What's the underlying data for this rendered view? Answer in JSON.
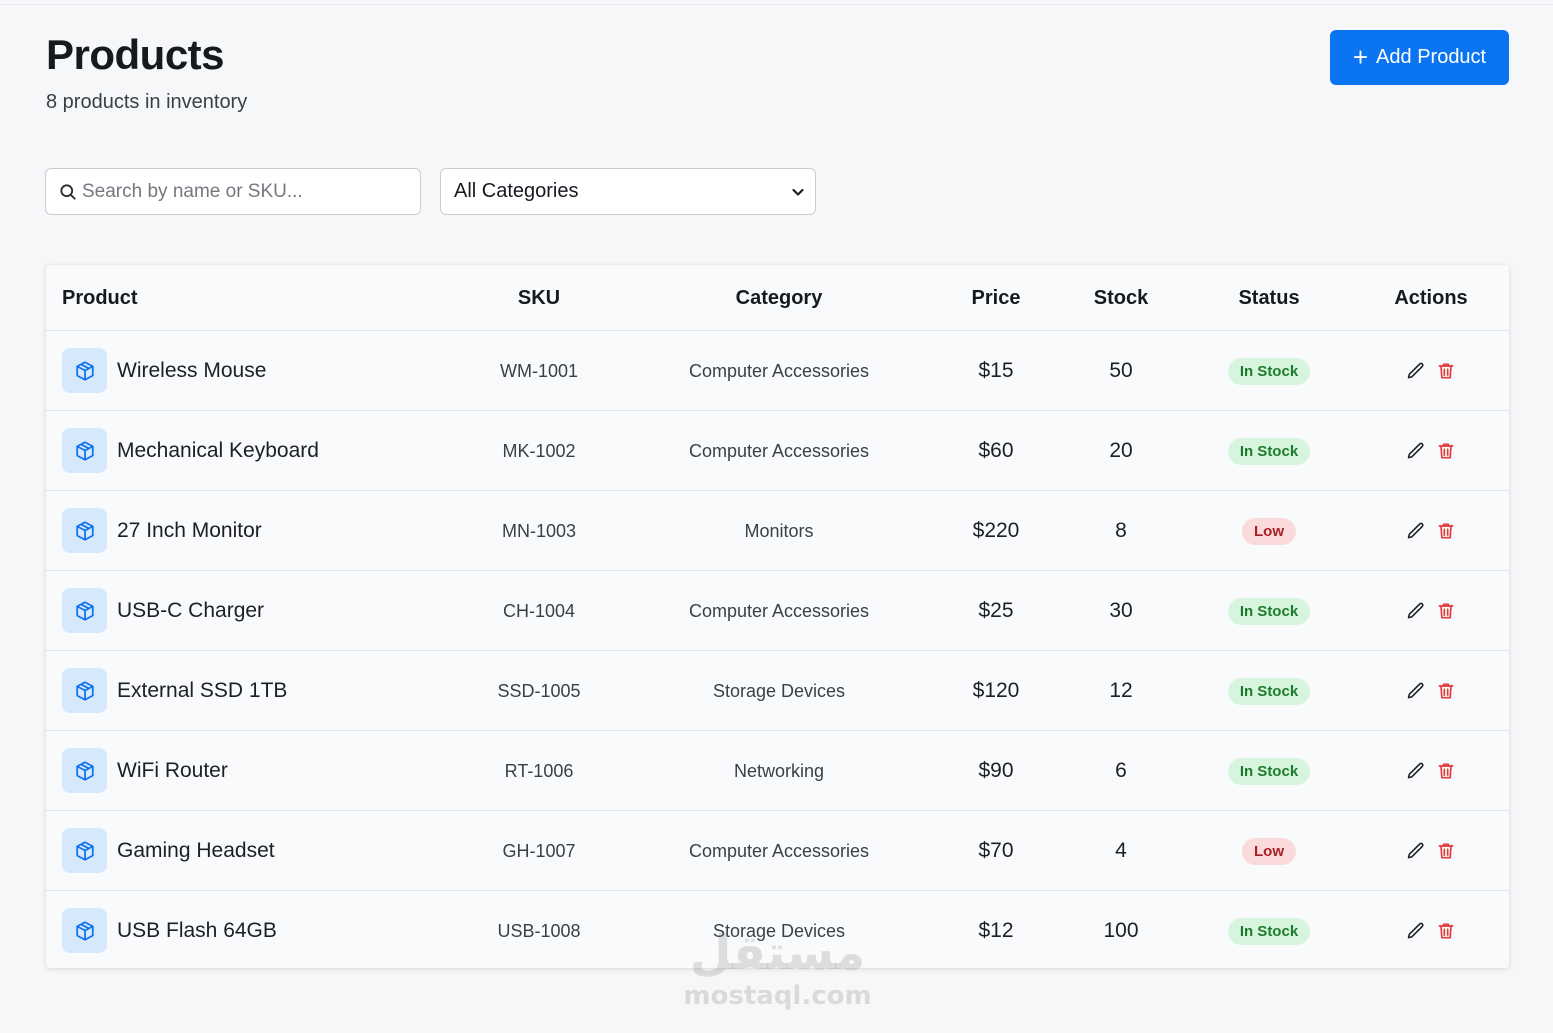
{
  "header": {
    "title": "Products",
    "subtitle": "8 products in inventory",
    "add_button_label": "Add Product",
    "add_button_icon": "plus-icon"
  },
  "filters": {
    "search_placeholder": "Search by name or SKU...",
    "search_value": "",
    "search_icon": "search-icon",
    "category_selected": "All Categories",
    "category_icon": "chevron-down-icon"
  },
  "table": {
    "columns": [
      "Product",
      "SKU",
      "Category",
      "Price",
      "Stock",
      "Status",
      "Actions"
    ],
    "rows": [
      {
        "name": "Wireless Mouse",
        "sku": "WM-1001",
        "category": "Computer Accessories",
        "price": "$15",
        "stock": "50",
        "status": "In Stock",
        "status_type": "in"
      },
      {
        "name": "Mechanical Keyboard",
        "sku": "MK-1002",
        "category": "Computer Accessories",
        "price": "$60",
        "stock": "20",
        "status": "In Stock",
        "status_type": "in"
      },
      {
        "name": "27 Inch Monitor",
        "sku": "MN-1003",
        "category": "Monitors",
        "price": "$220",
        "stock": "8",
        "status": "Low",
        "status_type": "low"
      },
      {
        "name": "USB-C Charger",
        "sku": "CH-1004",
        "category": "Computer Accessories",
        "price": "$25",
        "stock": "30",
        "status": "In Stock",
        "status_type": "in"
      },
      {
        "name": "External SSD 1TB",
        "sku": "SSD-1005",
        "category": "Storage Devices",
        "price": "$120",
        "stock": "12",
        "status": "In Stock",
        "status_type": "in"
      },
      {
        "name": "WiFi Router",
        "sku": "RT-1006",
        "category": "Networking",
        "price": "$90",
        "stock": "6",
        "status": "In Stock",
        "status_type": "in"
      },
      {
        "name": "Gaming Headset",
        "sku": "GH-1007",
        "category": "Computer Accessories",
        "price": "$70",
        "stock": "4",
        "status": "Low",
        "status_type": "low"
      },
      {
        "name": "USB Flash 64GB",
        "sku": "USB-1008",
        "category": "Storage Devices",
        "price": "$12",
        "stock": "100",
        "status": "In Stock",
        "status_type": "in"
      }
    ]
  },
  "icons": {
    "product": "package-icon",
    "edit": "pencil-icon",
    "delete": "trash-icon"
  },
  "watermark": {
    "arabic": "مستقل",
    "latin": "mostaql.com"
  },
  "colors": {
    "accent": "#0b74f0",
    "in_stock_bg": "#d6f5dc",
    "in_stock_text": "#1f7a2f",
    "low_bg": "#fadadb",
    "low_text": "#a52125",
    "delete_icon": "#e03a3e",
    "product_icon": "#0b74f0"
  }
}
